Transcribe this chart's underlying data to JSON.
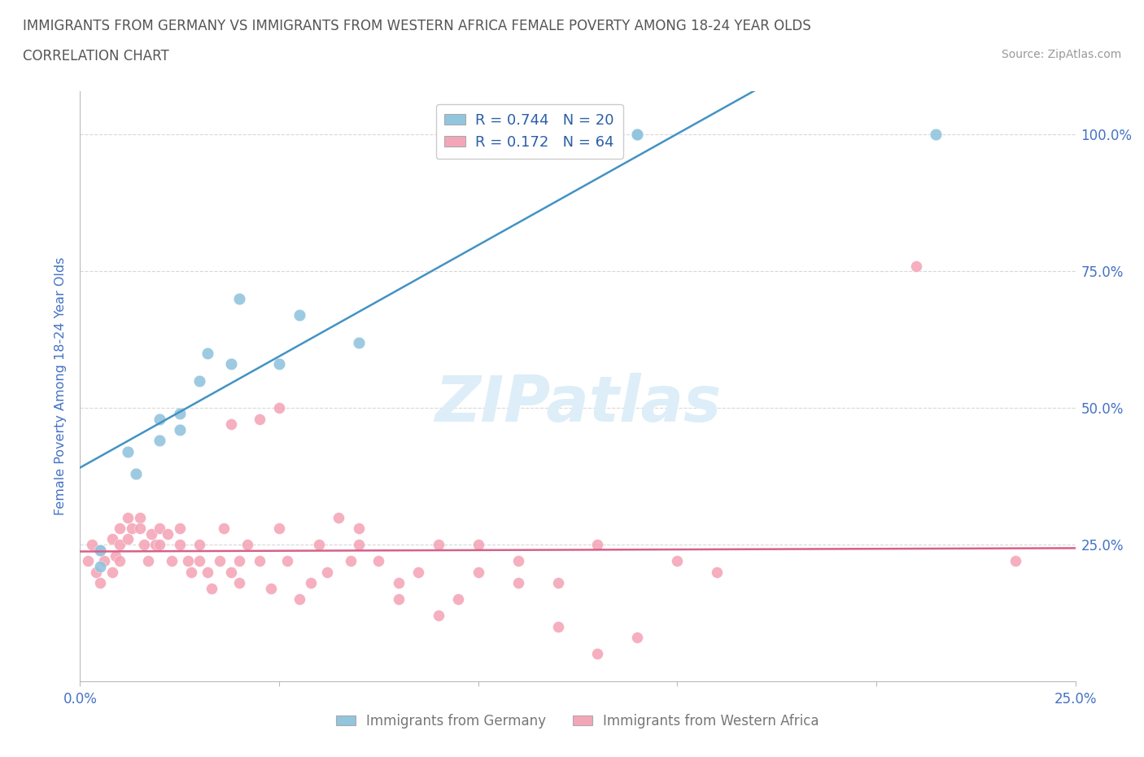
{
  "title_line1": "IMMIGRANTS FROM GERMANY VS IMMIGRANTS FROM WESTERN AFRICA FEMALE POVERTY AMONG 18-24 YEAR OLDS",
  "title_line2": "CORRELATION CHART",
  "source": "Source: ZipAtlas.com",
  "xlabel": "",
  "ylabel": "Female Poverty Among 18-24 Year Olds",
  "xlim": [
    0.0,
    0.25
  ],
  "ylim": [
    0.0,
    1.08
  ],
  "x_ticks": [
    0.0,
    0.05,
    0.1,
    0.15,
    0.2,
    0.25
  ],
  "x_tick_labels": [
    "0.0%",
    "",
    "",
    "",
    "",
    "25.0%"
  ],
  "y_ticks": [
    0.0,
    0.25,
    0.5,
    0.75,
    1.0
  ],
  "y_tick_labels": [
    "",
    "25.0%",
    "50.0%",
    "75.0%",
    "100.0%"
  ],
  "blue_color": "#92c5de",
  "pink_color": "#f4a6b8",
  "blue_line_color": "#4393c3",
  "pink_line_color": "#d6618a",
  "r_blue": 0.744,
  "n_blue": 20,
  "r_pink": 0.172,
  "n_pink": 64,
  "watermark": "ZIPatlas",
  "watermark_color": "#ddeef8",
  "legend_label_blue": "Immigrants from Germany",
  "legend_label_pink": "Immigrants from Western Africa",
  "blue_x": [
    0.005,
    0.005,
    0.012,
    0.014,
    0.02,
    0.02,
    0.025,
    0.025,
    0.03,
    0.032,
    0.038,
    0.04,
    0.05,
    0.055,
    0.07,
    0.095,
    0.1,
    0.14,
    0.14,
    0.215
  ],
  "blue_y": [
    0.21,
    0.24,
    0.42,
    0.38,
    0.44,
    0.48,
    0.46,
    0.49,
    0.55,
    0.6,
    0.58,
    0.7,
    0.58,
    0.67,
    0.62,
    1.0,
    1.0,
    1.0,
    1.0,
    1.0
  ],
  "pink_x": [
    0.002,
    0.003,
    0.004,
    0.005,
    0.005,
    0.006,
    0.008,
    0.008,
    0.009,
    0.01,
    0.01,
    0.01,
    0.012,
    0.012,
    0.013,
    0.015,
    0.015,
    0.016,
    0.017,
    0.018,
    0.019,
    0.02,
    0.02,
    0.022,
    0.023,
    0.025,
    0.025,
    0.027,
    0.028,
    0.03,
    0.03,
    0.032,
    0.033,
    0.035,
    0.036,
    0.038,
    0.04,
    0.04,
    0.042,
    0.045,
    0.048,
    0.05,
    0.052,
    0.055,
    0.058,
    0.06,
    0.062,
    0.065,
    0.068,
    0.07,
    0.075,
    0.08,
    0.085,
    0.09,
    0.095,
    0.1,
    0.11,
    0.12,
    0.13,
    0.14,
    0.15,
    0.16,
    0.21,
    0.235
  ],
  "pink_y": [
    0.22,
    0.25,
    0.2,
    0.18,
    0.24,
    0.22,
    0.2,
    0.26,
    0.23,
    0.28,
    0.25,
    0.22,
    0.3,
    0.26,
    0.28,
    0.3,
    0.28,
    0.25,
    0.22,
    0.27,
    0.25,
    0.28,
    0.25,
    0.27,
    0.22,
    0.28,
    0.25,
    0.22,
    0.2,
    0.25,
    0.22,
    0.2,
    0.17,
    0.22,
    0.28,
    0.2,
    0.22,
    0.18,
    0.25,
    0.22,
    0.17,
    0.28,
    0.22,
    0.15,
    0.18,
    0.25,
    0.2,
    0.3,
    0.22,
    0.28,
    0.22,
    0.18,
    0.2,
    0.25,
    0.15,
    0.2,
    0.22,
    0.18,
    0.25,
    0.08,
    0.22,
    0.2,
    0.76,
    0.22
  ],
  "pink_extra_x": [
    0.038,
    0.045,
    0.05,
    0.07,
    0.08,
    0.09,
    0.1,
    0.11,
    0.12,
    0.13
  ],
  "pink_extra_y": [
    0.47,
    0.48,
    0.5,
    0.25,
    0.15,
    0.12,
    0.25,
    0.18,
    0.1,
    0.05
  ],
  "grid_color": "#d8d8d8",
  "background_color": "#ffffff",
  "title_color": "#555555",
  "axis_label_color": "#4472c4",
  "tick_color": "#4472c4"
}
